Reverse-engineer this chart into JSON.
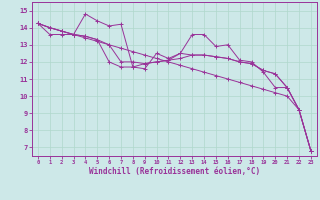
{
  "xlabel": "Windchill (Refroidissement éolien,°C)",
  "xlim": [
    -0.5,
    23.5
  ],
  "ylim": [
    6.5,
    15.5
  ],
  "xticks": [
    0,
    1,
    2,
    3,
    4,
    5,
    6,
    7,
    8,
    9,
    10,
    11,
    12,
    13,
    14,
    15,
    16,
    17,
    18,
    19,
    20,
    21,
    22,
    23
  ],
  "yticks": [
    7,
    8,
    9,
    10,
    11,
    12,
    13,
    14,
    15
  ],
  "bg_color": "#cde8e8",
  "line_color": "#993399",
  "grid_color": "#b0d8cc",
  "series": [
    [
      14.25,
      14.0,
      13.8,
      13.6,
      14.8,
      14.4,
      14.1,
      14.2,
      11.7,
      11.6,
      12.5,
      12.2,
      12.5,
      13.6,
      13.6,
      12.9,
      13.0,
      12.1,
      12.0,
      11.4,
      10.5,
      10.5,
      9.2,
      6.8
    ],
    [
      14.25,
      14.0,
      13.8,
      13.6,
      13.5,
      13.3,
      13.0,
      12.0,
      12.0,
      11.9,
      12.0,
      12.1,
      12.2,
      12.4,
      12.4,
      12.3,
      12.2,
      12.0,
      11.9,
      11.5,
      11.3,
      10.5,
      9.2,
      6.8
    ],
    [
      14.25,
      14.0,
      13.8,
      13.6,
      13.4,
      13.2,
      13.0,
      12.8,
      12.6,
      12.4,
      12.2,
      12.0,
      11.8,
      11.6,
      11.4,
      11.2,
      11.0,
      10.8,
      10.6,
      10.4,
      10.2,
      10.0,
      9.2,
      6.8
    ],
    [
      14.25,
      13.6,
      13.6,
      13.6,
      13.5,
      13.3,
      12.0,
      11.7,
      11.7,
      11.9,
      12.0,
      12.1,
      12.5,
      12.4,
      12.4,
      12.3,
      12.2,
      12.0,
      11.9,
      11.5,
      11.3,
      10.5,
      9.2,
      6.8
    ]
  ]
}
